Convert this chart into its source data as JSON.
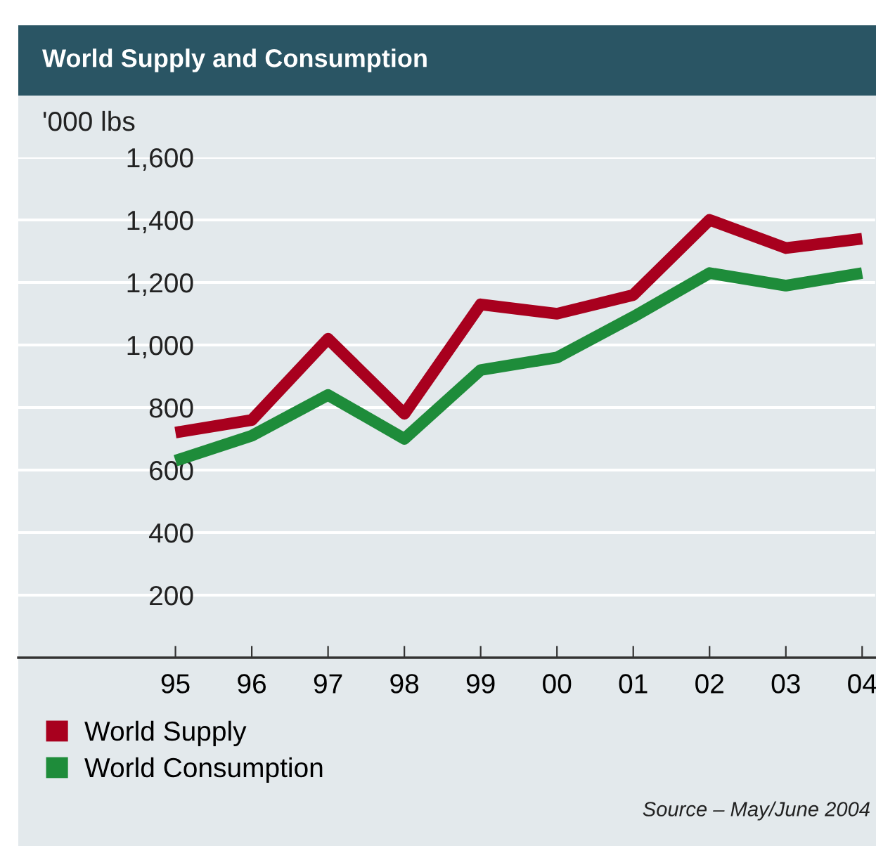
{
  "chart_data": {
    "type": "line",
    "title": "World Supply and Consumption",
    "ylabel": "'000 lbs",
    "categories": [
      "95",
      "96",
      "97",
      "98",
      "99",
      "00",
      "01",
      "02",
      "03",
      "04"
    ],
    "series": [
      {
        "name": "World Supply",
        "color": "#a8001e",
        "values": [
          720,
          760,
          1020,
          780,
          1130,
          1100,
          1160,
          1400,
          1310,
          1340
        ]
      },
      {
        "name": "World Consumption",
        "color": "#1e8c3a",
        "values": [
          630,
          710,
          840,
          700,
          920,
          960,
          1090,
          1230,
          1190,
          1230
        ]
      }
    ],
    "ylim": [
      0,
      1600
    ],
    "yticks": [
      200,
      400,
      600,
      800,
      {
        "value": 1000,
        "label": "1,000"
      },
      {
        "value": 1200,
        "label": "1,200"
      },
      {
        "value": 1400,
        "label": "1,400"
      },
      {
        "value": 1600,
        "label": "1,600"
      }
    ],
    "grid": "y",
    "legend": "bottom left",
    "marker": "none",
    "line_style": "solid",
    "annotations": [
      "Source – May/June 2004"
    ]
  }
}
